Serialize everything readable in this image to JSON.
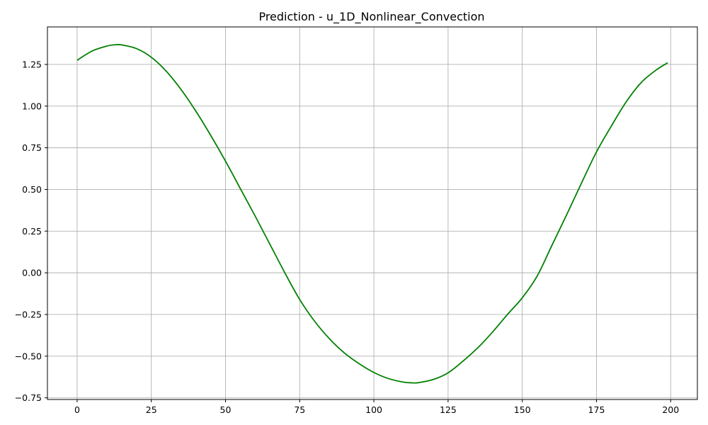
{
  "chart_data": {
    "type": "line",
    "title": "Prediction - u_1D_Nonlinear_Convection",
    "xlabel": "",
    "ylabel": "",
    "xlim": [
      -10,
      209
    ],
    "ylim": [
      -0.76,
      1.475
    ],
    "grid": true,
    "xticks": [
      0,
      25,
      50,
      75,
      100,
      125,
      150,
      175,
      200
    ],
    "xtick_labels": [
      "0",
      "25",
      "50",
      "75",
      "100",
      "125",
      "150",
      "175",
      "200"
    ],
    "yticks": [
      -0.75,
      -0.5,
      -0.25,
      0.0,
      0.25,
      0.5,
      0.75,
      1.0,
      1.25
    ],
    "ytick_labels": [
      "−0.75",
      "−0.50",
      "−0.25",
      "0.00",
      "0.25",
      "0.50",
      "0.75",
      "1.00",
      "1.25"
    ],
    "series": [
      {
        "color": "#008000",
        "x": [
          0,
          5,
          10,
          13,
          15,
          20,
          25,
          30,
          35,
          40,
          45,
          50,
          55,
          60,
          65,
          70,
          75,
          80,
          85,
          90,
          95,
          100,
          105,
          110,
          113,
          115,
          120,
          125,
          130,
          135,
          140,
          145,
          150,
          155,
          160,
          165,
          170,
          175,
          180,
          185,
          190,
          195,
          199
        ],
        "y": [
          1.275,
          1.33,
          1.36,
          1.368,
          1.367,
          1.345,
          1.293,
          1.21,
          1.1,
          0.97,
          0.825,
          0.67,
          0.505,
          0.34,
          0.17,
          0.0,
          -0.16,
          -0.29,
          -0.395,
          -0.48,
          -0.545,
          -0.598,
          -0.635,
          -0.656,
          -0.66,
          -0.659,
          -0.64,
          -0.6,
          -0.53,
          -0.45,
          -0.355,
          -0.25,
          -0.15,
          -0.02,
          0.165,
          0.35,
          0.54,
          0.725,
          0.88,
          1.025,
          1.14,
          1.215,
          1.26
        ]
      }
    ]
  }
}
